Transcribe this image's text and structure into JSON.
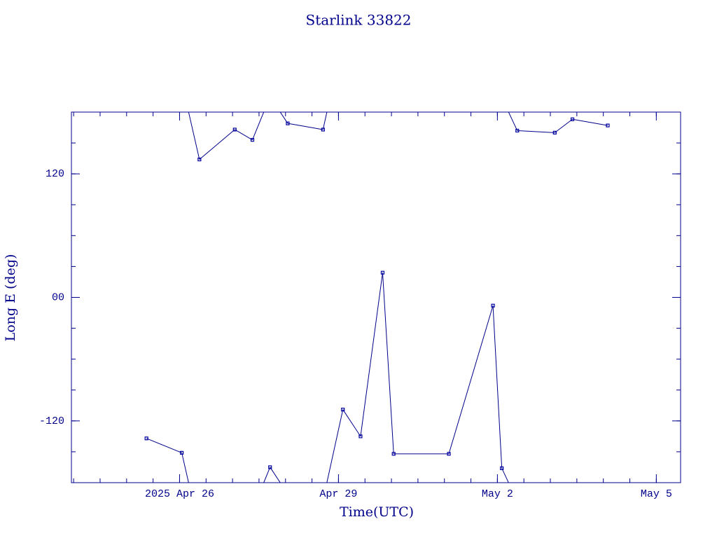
{
  "chart_data": {
    "type": "line",
    "title": "Starlink 33822",
    "x_label": "Time(UTC)",
    "y_label": "Long E (deg)",
    "x": [
      "2025-04-25T09:00",
      "2025-04-26T01:00",
      "2025-04-26T09:00",
      "2025-04-27T01:00",
      "2025-04-27T09:00",
      "2025-04-27T17:00",
      "2025-04-28T01:00",
      "2025-04-28T17:00",
      "2025-04-29T02:00",
      "2025-04-29T10:00",
      "2025-04-29T20:00",
      "2025-04-30T01:00",
      "2025-05-01T02:00",
      "2025-05-01T22:00",
      "2025-05-02T02:00",
      "2025-05-02T09:00",
      "2025-05-03T02:00",
      "2025-05-03T10:00",
      "2025-05-04T02:00"
    ],
    "series": [
      {
        "name": "Long E",
        "color": "#0000a0",
        "values": [
          -137,
          -151,
          134,
          163,
          153,
          -165,
          169,
          163,
          -109,
          -135,
          24,
          -152,
          -152,
          -8,
          -166,
          162,
          160,
          173,
          167
        ]
      }
    ],
    "xlim": [
      "2025-04-23T23:00",
      "2025-05-05T11:00"
    ],
    "xticks": [
      {
        "value": "2025-04-26T00:00",
        "label": "2025 Apr 26"
      },
      {
        "value": "2025-04-29T00:00",
        "label": "Apr 29"
      },
      {
        "value": "2025-05-02T00:00",
        "label": "May  2"
      },
      {
        "value": "2025-05-05T00:00",
        "label": "May  5"
      }
    ],
    "ylim": [
      -180,
      180
    ],
    "yticks": [
      -120,
      {
        "value": 0,
        "label": "00"
      },
      120
    ]
  }
}
